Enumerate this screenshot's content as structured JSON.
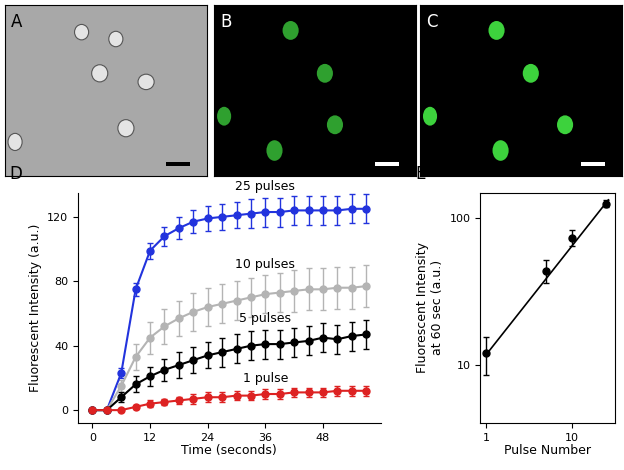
{
  "chart_data": [
    {
      "type": "image",
      "panel": "A",
      "color": "#e4e4e4"
    },
    {
      "type": "image",
      "panel": "B",
      "color": "#2fa02f"
    },
    {
      "type": "image",
      "panel": "C",
      "color": "#3dd23d"
    },
    {
      "type": "line",
      "panel": "D",
      "x_label": "Time (seconds)",
      "y_label": "Fluorescent Intensity (a.u.)",
      "x": [
        0,
        3,
        6,
        9,
        12,
        15,
        18,
        21,
        24,
        27,
        30,
        33,
        36,
        39,
        42,
        45,
        48,
        51,
        54,
        57
      ],
      "xlim": [
        -3,
        60
      ],
      "xticks": [
        0,
        12,
        24,
        36,
        48
      ],
      "ylim": [
        -8,
        135
      ],
      "yticks": [
        0,
        40,
        80,
        120
      ],
      "marker": "circle",
      "series": [
        {
          "name": "25 pulses",
          "color": "#2233dd",
          "values": [
            0,
            0,
            23,
            75,
            99,
            108,
            113,
            117,
            119,
            120,
            121,
            122,
            123,
            123,
            124,
            124,
            124,
            124,
            125,
            125
          ],
          "errors": [
            0,
            0,
            3,
            4,
            5,
            6,
            7,
            7,
            8,
            8,
            8,
            9,
            9,
            9,
            9,
            9,
            9,
            9,
            9,
            9
          ]
        },
        {
          "name": "10 pulses",
          "color": "#b4b4b4",
          "values": [
            0,
            0,
            15,
            33,
            45,
            52,
            57,
            61,
            64,
            66,
            68,
            70,
            72,
            73,
            74,
            75,
            75,
            76,
            76,
            77
          ],
          "errors": [
            0,
            0,
            4,
            8,
            10,
            11,
            11,
            12,
            12,
            12,
            12,
            12,
            12,
            12,
            13,
            13,
            13,
            13,
            13,
            13
          ]
        },
        {
          "name": "5 pulses",
          "color": "#000000",
          "values": [
            0,
            0,
            8,
            16,
            21,
            25,
            28,
            31,
            34,
            36,
            38,
            40,
            41,
            41,
            42,
            43,
            45,
            44,
            46,
            47
          ],
          "errors": [
            0,
            0,
            3,
            5,
            6,
            7,
            8,
            8,
            8,
            9,
            9,
            9,
            9,
            9,
            9,
            9,
            9,
            9,
            9,
            9
          ]
        },
        {
          "name": "1 pulse",
          "color": "#dd2222",
          "values": [
            0,
            0,
            0,
            2,
            4,
            5,
            6,
            7,
            8,
            8,
            9,
            9,
            10,
            10,
            11,
            11,
            11,
            12,
            12,
            12
          ],
          "errors": [
            0,
            0,
            0,
            1,
            2,
            2,
            2,
            3,
            3,
            3,
            3,
            3,
            3,
            3,
            3,
            3,
            3,
            3,
            3,
            3
          ]
        }
      ]
    },
    {
      "type": "scatter",
      "panel": "E",
      "log": true,
      "x_label": "Pulse Number",
      "y_label": "Fluorescent Intensity\nat 60 sec (a.u.)",
      "xlim": [
        0.85,
        32
      ],
      "xticks": [
        1,
        10
      ],
      "ylim": [
        4,
        150
      ],
      "yticks": [
        10,
        100
      ],
      "series": [
        {
          "type": "scatter",
          "marker": "circle",
          "color": "#000000",
          "x": [
            1,
            5,
            10,
            25
          ],
          "values": [
            12,
            44,
            74,
            126
          ],
          "errors": [
            3.5,
            8,
            9,
            7
          ]
        },
        {
          "type": "line",
          "color": "#000000",
          "line_style": "solid",
          "x": [
            1,
            27
          ],
          "values": [
            11.8,
            134
          ]
        }
      ]
    }
  ]
}
